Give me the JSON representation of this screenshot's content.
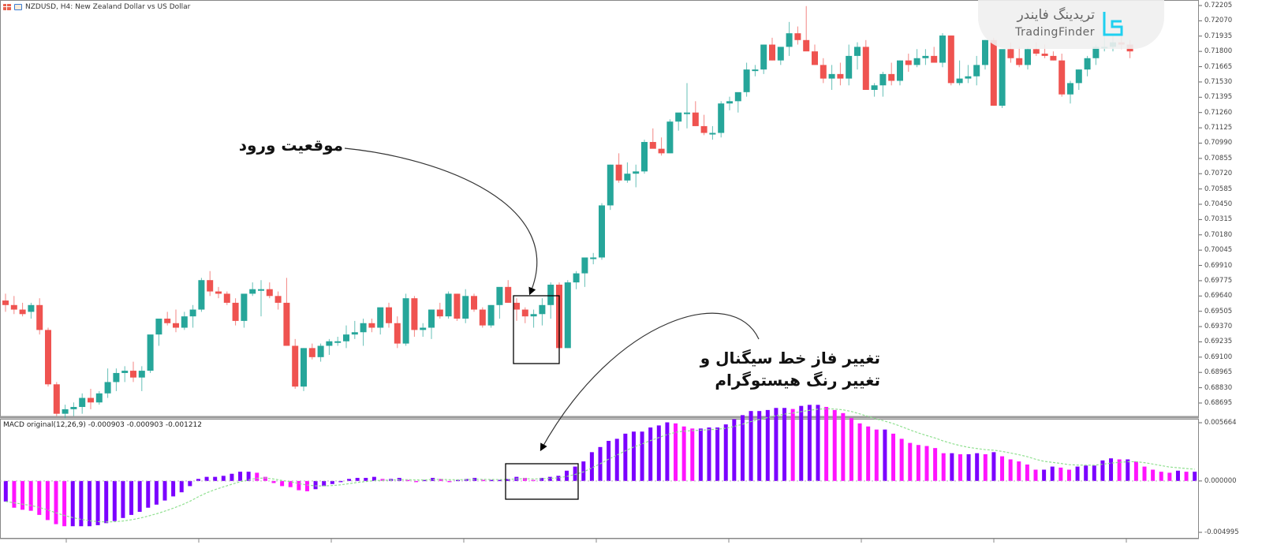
{
  "window": {
    "title": "NZDUSD, H4:  New Zealand Dollar vs US Dollar",
    "symbol": "NZDUSD",
    "timeframe": "H4"
  },
  "indicator": {
    "label": "MACD original(12,26,9) -0.000903 -0.000903 -0.001212",
    "name": "MACD original",
    "params": "12,26,9",
    "values": [
      -0.000903,
      -0.000903,
      -0.001212
    ]
  },
  "watermark": {
    "fa": "تریدینگ فایندر",
    "en": "TradingFinder",
    "icon": "tradingfinder-logo-icon"
  },
  "annotations": {
    "entry": "موقعیت ورود",
    "signal_line1": "تغییر فاز خط سیگنال و",
    "signal_line2": "تغییر رنگ هیستوگرام"
  },
  "colors": {
    "bull": "#26a69a",
    "bear": "#ef5350",
    "hist_purple": "#7b00ff",
    "hist_magenta": "#ff14ff",
    "signal": "#90e090",
    "axis": "#888888",
    "grid_sep": "#999999"
  },
  "price_axis": {
    "ticks": [
      "0.72205",
      "0.72070",
      "0.71935",
      "0.71800",
      "0.71665",
      "0.71530",
      "0.71395",
      "0.71260",
      "0.71125",
      "0.70990",
      "0.70855",
      "0.70720",
      "0.70585",
      "0.70450",
      "0.70315",
      "0.70180",
      "0.70045",
      "0.69910",
      "0.69775",
      "0.69640",
      "0.69505",
      "0.69370",
      "0.69235",
      "0.69100",
      "0.68965",
      "0.68830",
      "0.68695"
    ]
  },
  "macd_axis": {
    "ticks": [
      "0.005664",
      "0.000000",
      "-0.004995"
    ]
  },
  "chart_data": [
    {
      "type": "candlestick",
      "title": "NZDUSD, H4: New Zealand Dollar vs US Dollar",
      "ylim": [
        0.6862,
        0.7224
      ],
      "ohlc": [
        [
          0.696,
          0.6966,
          0.695,
          0.6956
        ],
        [
          0.6956,
          0.6964,
          0.6948,
          0.6952
        ],
        [
          0.6952,
          0.6958,
          0.6946,
          0.6948
        ],
        [
          0.695,
          0.6958,
          0.6944,
          0.6956
        ],
        [
          0.6956,
          0.6962,
          0.693,
          0.6934
        ],
        [
          0.6934,
          0.6936,
          0.6884,
          0.6886
        ],
        [
          0.6886,
          0.6888,
          0.6858,
          0.686
        ],
        [
          0.686,
          0.6868,
          0.6856,
          0.6864
        ],
        [
          0.6864,
          0.687,
          0.6858,
          0.6866
        ],
        [
          0.6866,
          0.6878,
          0.686,
          0.6874
        ],
        [
          0.6874,
          0.6882,
          0.6864,
          0.687
        ],
        [
          0.687,
          0.688,
          0.6868,
          0.6878
        ],
        [
          0.6878,
          0.69,
          0.6874,
          0.6888
        ],
        [
          0.6888,
          0.69,
          0.688,
          0.6896
        ],
        [
          0.6896,
          0.6902,
          0.6888,
          0.6898
        ],
        [
          0.6898,
          0.6906,
          0.6888,
          0.6892
        ],
        [
          0.6892,
          0.6902,
          0.688,
          0.6898
        ],
        [
          0.6898,
          0.6928,
          0.6896,
          0.693
        ],
        [
          0.693,
          0.6936,
          0.692,
          0.6944
        ],
        [
          0.6944,
          0.695,
          0.6938,
          0.694
        ],
        [
          0.694,
          0.6952,
          0.6932,
          0.6936
        ],
        [
          0.6936,
          0.695,
          0.6934,
          0.6946
        ],
        [
          0.6946,
          0.6956,
          0.6936,
          0.6952
        ],
        [
          0.6952,
          0.698,
          0.695,
          0.6978
        ],
        [
          0.6978,
          0.6986,
          0.6964,
          0.6968
        ],
        [
          0.6968,
          0.6972,
          0.6962,
          0.6966
        ],
        [
          0.6966,
          0.6968,
          0.6956,
          0.6958
        ],
        [
          0.6958,
          0.6962,
          0.6938,
          0.6942
        ],
        [
          0.6942,
          0.6964,
          0.6936,
          0.6966
        ],
        [
          0.6966,
          0.6976,
          0.6964,
          0.697
        ],
        [
          0.697,
          0.6978,
          0.6946,
          0.697
        ],
        [
          0.697,
          0.6976,
          0.6962,
          0.6964
        ],
        [
          0.6964,
          0.6968,
          0.6952,
          0.6958
        ],
        [
          0.6958,
          0.698,
          0.692,
          0.692
        ],
        [
          0.692,
          0.6926,
          0.6882,
          0.6884
        ],
        [
          0.6884,
          0.6918,
          0.688,
          0.6918
        ],
        [
          0.6918,
          0.6922,
          0.6908,
          0.691
        ],
        [
          0.691,
          0.6922,
          0.6906,
          0.692
        ],
        [
          0.692,
          0.6926,
          0.6912,
          0.6924
        ],
        [
          0.6924,
          0.6928,
          0.692,
          0.6924
        ],
        [
          0.6924,
          0.6938,
          0.6918,
          0.693
        ],
        [
          0.693,
          0.6942,
          0.6926,
          0.6932
        ],
        [
          0.6932,
          0.6944,
          0.692,
          0.694
        ],
        [
          0.694,
          0.6944,
          0.6932,
          0.6936
        ],
        [
          0.6936,
          0.6952,
          0.693,
          0.6954
        ],
        [
          0.6954,
          0.6958,
          0.6936,
          0.694
        ],
        [
          0.694,
          0.6946,
          0.6918,
          0.6922
        ],
        [
          0.6922,
          0.6966,
          0.692,
          0.6962
        ],
        [
          0.6962,
          0.6964,
          0.6928,
          0.6934
        ],
        [
          0.6934,
          0.694,
          0.6928,
          0.6936
        ],
        [
          0.6936,
          0.6952,
          0.6926,
          0.6952
        ],
        [
          0.6952,
          0.6958,
          0.6944,
          0.6946
        ],
        [
          0.6946,
          0.6968,
          0.6944,
          0.6966
        ],
        [
          0.6966,
          0.6966,
          0.6942,
          0.6944
        ],
        [
          0.6944,
          0.697,
          0.694,
          0.6964
        ],
        [
          0.6964,
          0.6966,
          0.695,
          0.6952
        ],
        [
          0.6952,
          0.6954,
          0.6936,
          0.6938
        ],
        [
          0.6938,
          0.6956,
          0.6936,
          0.6956
        ],
        [
          0.6956,
          0.6964,
          0.6944,
          0.6972
        ],
        [
          0.6972,
          0.6978,
          0.6958,
          0.6958
        ],
        [
          0.6958,
          0.6962,
          0.6942,
          0.6952
        ],
        [
          0.6952,
          0.6954,
          0.694,
          0.6946
        ],
        [
          0.6946,
          0.6952,
          0.6936,
          0.6948
        ],
        [
          0.6948,
          0.6962,
          0.6938,
          0.6956
        ],
        [
          0.6956,
          0.6976,
          0.6944,
          0.6974
        ],
        [
          0.6974,
          0.6976,
          0.6914,
          0.6918
        ],
        [
          0.6918,
          0.6978,
          0.6918,
          0.6976
        ],
        [
          0.6976,
          0.6986,
          0.697,
          0.6984
        ],
        [
          0.6984,
          0.6992,
          0.6972,
          0.6998
        ],
        [
          0.6998,
          0.7002,
          0.6992,
          0.6998
        ],
        [
          0.6998,
          0.7046,
          0.6996,
          0.7044
        ],
        [
          0.7044,
          0.708,
          0.704,
          0.708
        ],
        [
          0.708,
          0.709,
          0.7064,
          0.7066
        ],
        [
          0.7066,
          0.7082,
          0.7064,
          0.7072
        ],
        [
          0.7072,
          0.708,
          0.706,
          0.7074
        ],
        [
          0.7074,
          0.7102,
          0.7072,
          0.71
        ],
        [
          0.71,
          0.7112,
          0.7096,
          0.7094
        ],
        [
          0.7094,
          0.7104,
          0.7088,
          0.709
        ],
        [
          0.709,
          0.712,
          0.709,
          0.7118
        ],
        [
          0.7118,
          0.7124,
          0.711,
          0.7126
        ],
        [
          0.7126,
          0.7152,
          0.7112,
          0.7126
        ],
        [
          0.7126,
          0.7136,
          0.7114,
          0.7114
        ],
        [
          0.7114,
          0.7124,
          0.7106,
          0.7108
        ],
        [
          0.7108,
          0.7114,
          0.7102,
          0.7108
        ],
        [
          0.7108,
          0.7136,
          0.7104,
          0.7134
        ],
        [
          0.7134,
          0.714,
          0.7128,
          0.7136
        ],
        [
          0.7136,
          0.714,
          0.7126,
          0.7144
        ],
        [
          0.7144,
          0.717,
          0.714,
          0.7164
        ],
        [
          0.7164,
          0.7168,
          0.7158,
          0.7164
        ],
        [
          0.7164,
          0.7186,
          0.716,
          0.7186
        ],
        [
          0.7186,
          0.7192,
          0.7172,
          0.7172
        ],
        [
          0.7172,
          0.7184,
          0.7168,
          0.7184
        ],
        [
          0.7184,
          0.7206,
          0.7176,
          0.7196
        ],
        [
          0.7196,
          0.7202,
          0.7186,
          0.719
        ],
        [
          0.719,
          0.722,
          0.7186,
          0.718
        ],
        [
          0.718,
          0.7186,
          0.7168,
          0.7168
        ],
        [
          0.7168,
          0.7174,
          0.7152,
          0.7156
        ],
        [
          0.7156,
          0.7168,
          0.7146,
          0.716
        ],
        [
          0.716,
          0.717,
          0.715,
          0.7156
        ],
        [
          0.7156,
          0.7186,
          0.715,
          0.7176
        ],
        [
          0.7176,
          0.7188,
          0.7164,
          0.7184
        ],
        [
          0.7184,
          0.719,
          0.717,
          0.7146
        ],
        [
          0.7146,
          0.7152,
          0.714,
          0.715
        ],
        [
          0.715,
          0.7162,
          0.714,
          0.716
        ],
        [
          0.716,
          0.717,
          0.715,
          0.7154
        ],
        [
          0.7154,
          0.7172,
          0.715,
          0.7172
        ],
        [
          0.7172,
          0.7178,
          0.7162,
          0.7168
        ],
        [
          0.7168,
          0.7182,
          0.7166,
          0.7174
        ],
        [
          0.7174,
          0.7182,
          0.7168,
          0.7176
        ],
        [
          0.7176,
          0.7184,
          0.717,
          0.717
        ],
        [
          0.717,
          0.7196,
          0.7166,
          0.7194
        ],
        [
          0.7194,
          0.7194,
          0.715,
          0.7152
        ],
        [
          0.7152,
          0.7172,
          0.715,
          0.7156
        ],
        [
          0.7156,
          0.7168,
          0.7152,
          0.7158
        ],
        [
          0.7158,
          0.7176,
          0.715,
          0.7168
        ],
        [
          0.7168,
          0.719,
          0.7164,
          0.719
        ],
        [
          0.719,
          0.7192,
          0.7132,
          0.7132
        ],
        [
          0.7132,
          0.718,
          0.713,
          0.7182
        ],
        [
          0.7182,
          0.7188,
          0.717,
          0.7174
        ],
        [
          0.7174,
          0.7184,
          0.7166,
          0.7168
        ],
        [
          0.7168,
          0.7184,
          0.7164,
          0.7182
        ],
        [
          0.7182,
          0.7188,
          0.7176,
          0.7178
        ],
        [
          0.7178,
          0.7186,
          0.7174,
          0.7176
        ],
        [
          0.7176,
          0.718,
          0.7172,
          0.7172
        ],
        [
          0.7172,
          0.7178,
          0.714,
          0.7142
        ],
        [
          0.7142,
          0.7154,
          0.7134,
          0.7152
        ],
        [
          0.7152,
          0.7164,
          0.7146,
          0.7164
        ],
        [
          0.7164,
          0.7176,
          0.7158,
          0.7174
        ],
        [
          0.7174,
          0.7186,
          0.7168,
          0.7184
        ],
        [
          0.7184,
          0.7198,
          0.718,
          0.7184
        ],
        [
          0.7184,
          0.7194,
          0.718,
          0.7188
        ],
        [
          0.7188,
          0.7194,
          0.7182,
          0.7186
        ],
        [
          0.7186,
          0.719,
          0.7174,
          0.718
        ]
      ]
    },
    {
      "type": "bar",
      "title": "MACD original(12,26,9)",
      "ylim": [
        -0.004995,
        0.005664
      ],
      "histogram": [
        -0.002,
        -0.0026,
        -0.0028,
        -0.0029,
        -0.0033,
        -0.0038,
        -0.0042,
        -0.0044,
        -0.0044,
        -0.0044,
        -0.0044,
        -0.0043,
        -0.0041,
        -0.0039,
        -0.0036,
        -0.0033,
        -0.003,
        -0.0026,
        -0.0023,
        -0.0019,
        -0.0015,
        -0.0011,
        -0.0005,
        0.0002,
        0.0004,
        0.0004,
        0.0005,
        0.0007,
        0.0009,
        0.0009,
        0.0008,
        0.0004,
        -0.0002,
        -0.0005,
        -0.0006,
        -0.0009,
        -0.001,
        -0.0008,
        -0.0005,
        -0.0003,
        -0.0001,
        0.0002,
        0.0003,
        0.0003,
        0.0004,
        0.0002,
        0.0002,
        0.0003,
        0.0001,
        0.0,
        0.0001,
        0.0003,
        0.0002,
        0.0,
        0.0001,
        0.0002,
        0.0003,
        0.0001,
        0.0001,
        0.0001,
        0.0002,
        0.0004,
        0.0003,
        0.0001,
        0.0003,
        0.0004,
        0.0005,
        0.001,
        0.0014,
        0.0019,
        0.0028,
        0.0033,
        0.0039,
        0.0041,
        0.0046,
        0.0048,
        0.0048,
        0.0052,
        0.0054,
        0.0057,
        0.0056,
        0.0053,
        0.0051,
        0.0051,
        0.0052,
        0.0052,
        0.0055,
        0.006,
        0.0064,
        0.0068,
        0.0068,
        0.0069,
        0.0071,
        0.0071,
        0.007,
        0.0073,
        0.0074,
        0.0074,
        0.0072,
        0.0069,
        0.0066,
        0.0061,
        0.0056,
        0.0053,
        0.005,
        0.005,
        0.0046,
        0.0041,
        0.0037,
        0.0035,
        0.0034,
        0.0032,
        0.0027,
        0.0027,
        0.0026,
        0.0026,
        0.0027,
        0.0026,
        0.0028,
        0.0024,
        0.0021,
        0.0019,
        0.0016,
        0.0011,
        0.0011,
        0.0014,
        0.0013,
        0.0011,
        0.0014,
        0.0015,
        0.0015,
        0.002,
        0.0022,
        0.0021,
        0.0021,
        0.0019,
        0.0014,
        0.0011,
        0.0009,
        0.0008,
        0.001,
        0.0009,
        0.0009
      ],
      "signal_line": "dotted green, lagging histogram (crosses above zero near entry)",
      "colors_rule": "purple when rising, magenta when falling"
    }
  ]
}
